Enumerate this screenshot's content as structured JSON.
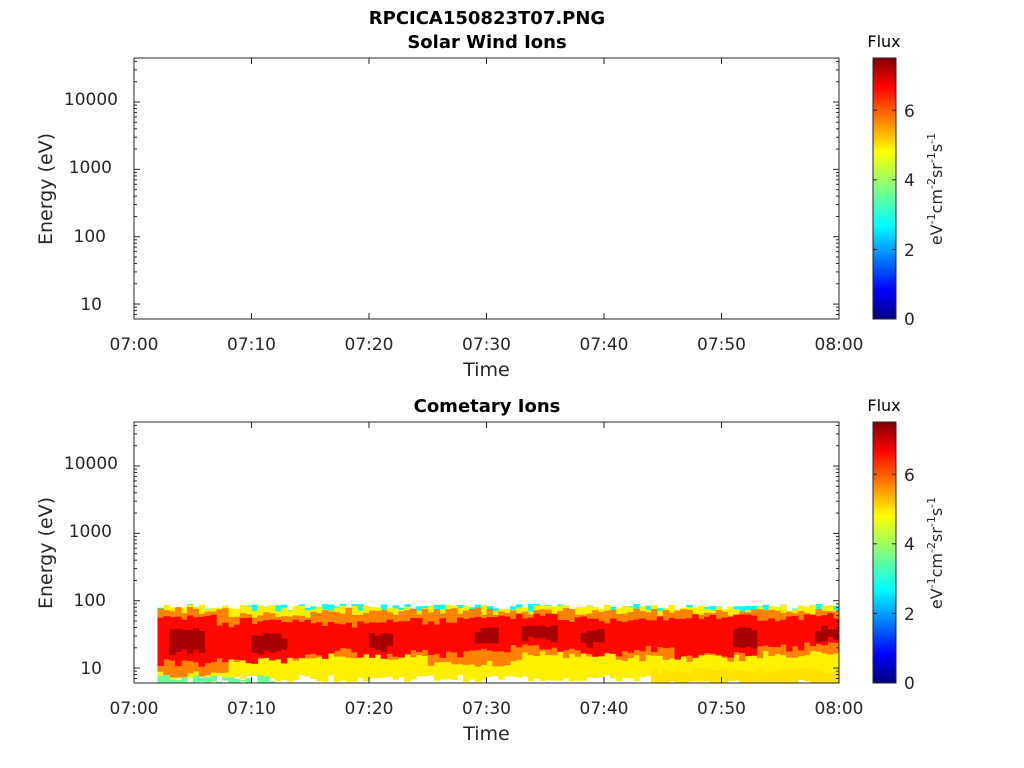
{
  "figure_title": "RPCICA150823T07.PNG",
  "chart_data": [
    {
      "type": "heatmap",
      "title": "Solar Wind Ions",
      "xlabel": "Time",
      "ylabel": "Energy (eV)",
      "x_ticks": [
        "07:00",
        "07:10",
        "07:20",
        "07:30",
        "07:40",
        "07:50",
        "08:00"
      ],
      "x_range": [
        "07:00",
        "08:00"
      ],
      "y_scale": "log",
      "y_ticks": [
        10,
        100,
        1000,
        10000
      ],
      "y_tick_labels": [
        "10",
        "100",
        "1000",
        "10000"
      ],
      "ylim": [
        6,
        45000
      ],
      "colorbar": {
        "title": "Flux",
        "unit_base": [
          "eV",
          "cm",
          "sr",
          "s"
        ],
        "unit_exp": [
          "-1",
          "-2",
          "-1",
          "-1"
        ],
        "range": [
          0,
          7.5
        ],
        "ticks": [
          0,
          2,
          4,
          6
        ],
        "colormap": "jet"
      },
      "bands": []
    },
    {
      "type": "heatmap",
      "title": "Cometary Ions",
      "xlabel": "Time",
      "ylabel": "Energy (eV)",
      "x_ticks": [
        "07:00",
        "07:10",
        "07:20",
        "07:30",
        "07:40",
        "07:50",
        "08:00"
      ],
      "x_range": [
        "07:00",
        "08:00"
      ],
      "y_scale": "log",
      "y_ticks": [
        10,
        100,
        1000,
        10000
      ],
      "y_tick_labels": [
        "10",
        "100",
        "1000",
        "10000"
      ],
      "ylim": [
        6,
        45000
      ],
      "colorbar": {
        "title": "Flux",
        "unit_base": [
          "eV",
          "cm",
          "sr",
          "s"
        ],
        "unit_exp": [
          "-1",
          "-2",
          "-1",
          "-1"
        ],
        "range": [
          0,
          7.5
        ],
        "ticks": [
          0,
          2,
          4,
          6
        ],
        "colormap": "jet"
      },
      "data_start": "07:02",
      "bands": [
        {
          "flux": 2.8,
          "segments": [
            [
              2,
              60,
              60,
              80
            ]
          ]
        },
        {
          "flux": 4.8,
          "segments": [
            [
              2,
              60,
              7,
              78
            ]
          ]
        },
        {
          "flux": 5.6,
          "segments": [
            [
              2,
              8,
              8,
              72
            ],
            [
              8,
              15,
              14,
              62
            ],
            [
              15,
              25,
              15,
              70
            ],
            [
              25,
              33,
              12,
              70
            ],
            [
              33,
              41,
              16,
              70
            ],
            [
              41,
              52,
              14,
              68
            ],
            [
              52,
              60,
              16,
              70
            ]
          ]
        },
        {
          "flux": 6.5,
          "segments": [
            [
              2,
              5,
              12,
              55
            ],
            [
              5,
              7,
              11,
              60
            ],
            [
              7,
              9,
              13,
              45
            ],
            [
              9,
              13,
              13,
              50
            ],
            [
              13,
              17,
              15,
              48
            ],
            [
              17,
              19,
              18,
              45
            ],
            [
              19,
              23,
              15,
              50
            ],
            [
              23,
              26,
              17,
              50
            ],
            [
              26,
              28,
              16,
              52
            ],
            [
              28,
              32,
              19,
              55
            ],
            [
              32,
              34,
              20,
              60
            ],
            [
              34,
              36,
              20,
              64
            ],
            [
              36,
              39,
              18,
              55
            ],
            [
              39,
              42,
              16,
              52
            ],
            [
              42,
              46,
              19,
              58
            ],
            [
              46,
              50,
              15,
              56
            ],
            [
              50,
              53,
              16,
              60
            ],
            [
              53,
              57,
              20,
              55
            ],
            [
              57,
              60,
              22,
              60
            ]
          ]
        },
        {
          "flux": 7.2,
          "segments": [
            [
              3,
              6,
              17,
              35
            ],
            [
              10,
              13,
              18,
              30
            ],
            [
              20,
              22,
              19,
              32
            ],
            [
              29,
              31,
              25,
              38
            ],
            [
              33,
              36,
              26,
              42
            ],
            [
              38,
              40,
              22,
              36
            ],
            [
              51,
              53,
              22,
              40
            ],
            [
              58,
              60,
              26,
              40
            ]
          ]
        },
        {
          "flux": 4.9,
          "segments": [
            [
              44,
              60,
              6,
              9
            ]
          ]
        },
        {
          "flux": 3.6,
          "segments": [
            [
              2,
              12,
              6,
              7
            ]
          ]
        }
      ]
    }
  ]
}
